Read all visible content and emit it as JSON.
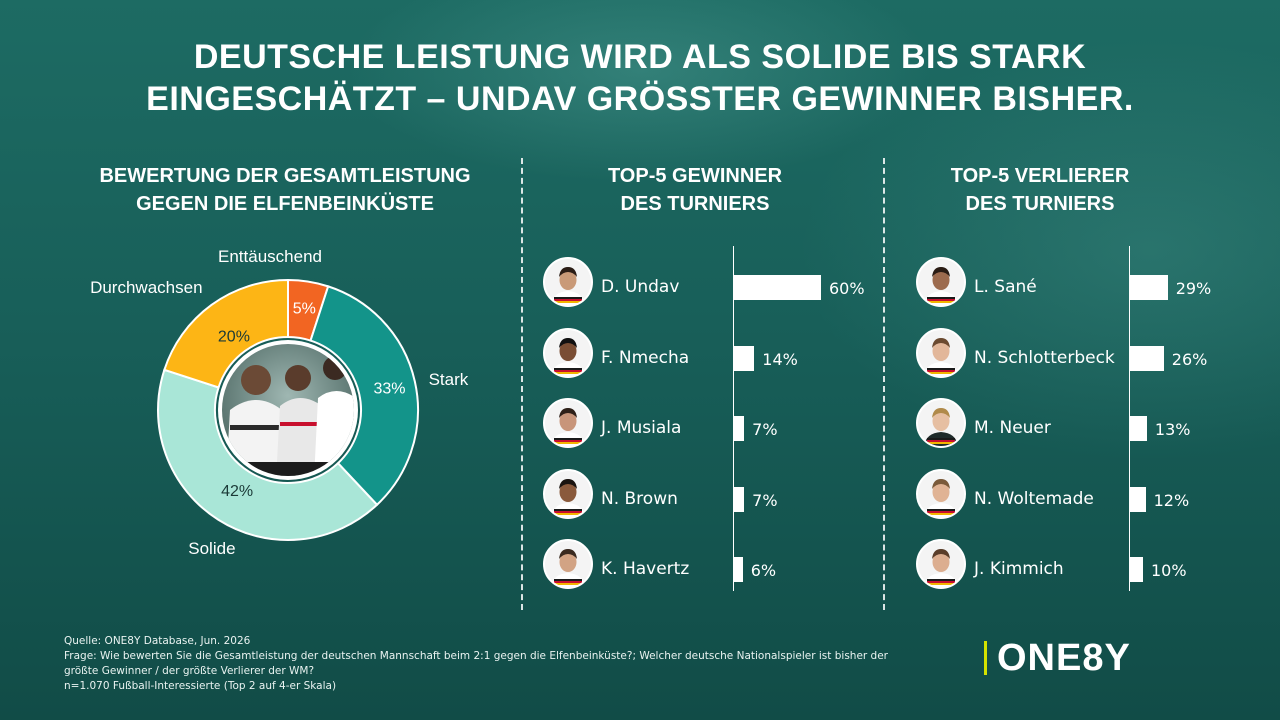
{
  "headline": {
    "line1": "DEUTSCHE LEISTUNG WIRD ALS SOLIDE BIS STARK",
    "line2": "EINGESCHÄTZT – UNDAV GRÖSSTER GEWINNER BISHER."
  },
  "colors": {
    "stark": "#13948a",
    "solide": "#a9e6d7",
    "durchwachsen": "#fdb515",
    "enttaeuschend": "#f26522",
    "logo_accent": "#d4e300",
    "background": "#185f59"
  },
  "chart_data": [
    {
      "type": "pie",
      "title_line1": "BEWERTUNG DER GESAMTLEISTUNG",
      "title_line2": "GEGEN DIE ELFENBEINKÜSTE",
      "donut": true,
      "slices": [
        {
          "label": "Enttäuschend",
          "value": 5,
          "value_label": "5%",
          "color": "#f26522"
        },
        {
          "label": "Stark",
          "value": 33,
          "value_label": "33%",
          "color": "#13948a"
        },
        {
          "label": "Solide",
          "value": 42,
          "value_label": "42%",
          "color": "#a9e6d7"
        },
        {
          "label": "Durchwachsen",
          "value": 20,
          "value_label": "20%",
          "color": "#fdb515"
        }
      ]
    },
    {
      "type": "bar",
      "orientation": "horizontal",
      "title_line1": "TOP-5 GEWINNER",
      "title_line2": "DES TURNIERS",
      "categories": [
        "D. Undav",
        "F. Nmecha",
        "J. Musiala",
        "N. Brown",
        "K. Havertz"
      ],
      "values": [
        60,
        14,
        7,
        7,
        6
      ],
      "value_labels": [
        "60%",
        "14%",
        "7%",
        "7%",
        "6%"
      ],
      "xlim": [
        0,
        100
      ]
    },
    {
      "type": "bar",
      "orientation": "horizontal",
      "title_line1": "TOP-5 VERLIERER",
      "title_line2": "DES TURNIERS",
      "categories": [
        "L. Sané",
        "N. Schlotterbeck",
        "M. Neuer",
        "N. Woltemade",
        "J. Kimmich"
      ],
      "values": [
        29,
        26,
        13,
        12,
        10
      ],
      "value_labels": [
        "29%",
        "26%",
        "13%",
        "12%",
        "10%"
      ],
      "xlim": [
        0,
        100
      ]
    }
  ],
  "footer": {
    "source": "Quelle: ONE8Y Database, Jun. 2026",
    "question_line1": "Frage: Wie bewerten Sie die Gesamtleistung der deutschen Mannschaft beim 2:1 gegen die Elfenbeinküste?; Welcher deutsche Nationalspieler ist bisher der",
    "question_line2": "größte Gewinner / der größte Verlierer der WM?",
    "sample": "n=1.070 Fußball-Interessierte (Top 2 auf 4-er Skala)"
  },
  "logo": {
    "text": "ONE8Y"
  }
}
